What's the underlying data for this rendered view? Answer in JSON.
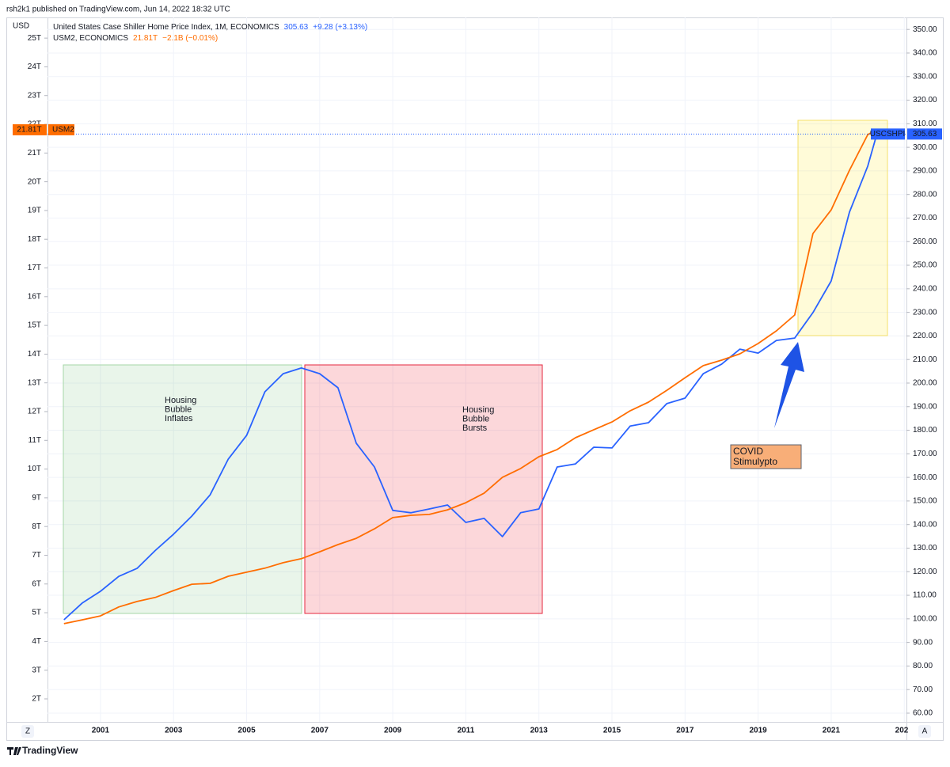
{
  "header": "rsh2k1 published on TradingView.com, Jun 14, 2022 18:32 UTC",
  "footer": "TradingView",
  "controls": [
    "Z",
    "A"
  ],
  "chart_data": {
    "type": "line",
    "y_label": "USD",
    "x": [
      2000,
      2000.5,
      2001,
      2001.5,
      2002,
      2002.5,
      2003,
      2003.5,
      2004,
      2004.5,
      2005,
      2005.5,
      2006,
      2006.5,
      2007,
      2007.5,
      2008,
      2008.5,
      2009,
      2009.5,
      2010,
      2010.5,
      2011,
      2011.5,
      2012,
      2012.5,
      2013,
      2013.5,
      2014,
      2014.5,
      2015,
      2015.5,
      2016,
      2016.5,
      2017,
      2017.5,
      2018,
      2018.5,
      2019,
      2019.5,
      2020,
      2020.5,
      2021,
      2021.5,
      2022,
      2022.25
    ],
    "series": [
      {
        "name": "United States Case Shiller Home Price Index, 1M, ECONOMICS",
        "short_name": "USCSHPI",
        "last": "305.63",
        "change": "+9.28 (+3.13%)",
        "color": "#2962ff",
        "axis": "y2",
        "values": [
          99.6,
          106.7,
          111.7,
          118,
          121.4,
          129,
          135.9,
          143.6,
          152.6,
          167.8,
          177.8,
          196.3,
          204,
          206.4,
          204,
          198,
          174.5,
          164.4,
          146,
          145,
          146.6,
          148.3,
          140.9,
          142.6,
          134.9,
          145,
          146.6,
          164.4,
          165.7,
          172.8,
          172.5,
          181.8,
          183.2,
          191.3,
          193.6,
          204,
          208,
          214.4,
          212.7,
          218.1,
          219.1,
          229.9,
          243.3,
          272.5,
          292,
          305.63
        ]
      },
      {
        "name": "USM2, ECONOMICS",
        "short_name": "USM2",
        "last": "21.81T",
        "change": "−2.1B (−0.01%)",
        "color": "#ff6d00",
        "values": [
          4.62,
          4.75,
          4.89,
          5.2,
          5.39,
          5.53,
          5.77,
          5.99,
          6.02,
          6.27,
          6.41,
          6.55,
          6.74,
          6.88,
          7.12,
          7.37,
          7.59,
          7.92,
          8.31,
          8.39,
          8.42,
          8.58,
          8.83,
          9.16,
          9.71,
          10.02,
          10.43,
          10.68,
          11.09,
          11.37,
          11.64,
          12.03,
          12.33,
          12.74,
          13.18,
          13.6,
          13.79,
          14.01,
          14.37,
          14.81,
          15.36,
          18.2,
          19.02,
          20.4,
          21.64,
          21.81
        ]
      }
    ],
    "xlim": [
      1999.55,
      2023.06
    ],
    "xticks": [
      2001,
      2003,
      2005,
      2007,
      2009,
      2011,
      2013,
      2015,
      2017,
      2019,
      2021,
      {
        "value": 2023,
        "label": "202"
      }
    ],
    "ylim": [
      1.2,
      25.72
    ],
    "yticks": [
      {
        "value": 2,
        "label": "2T"
      },
      {
        "value": 3,
        "label": "3T"
      },
      {
        "value": 4,
        "label": "4T"
      },
      {
        "value": 5,
        "label": "5T"
      },
      {
        "value": 6,
        "label": "6T"
      },
      {
        "value": 7,
        "label": "7T"
      },
      {
        "value": 8,
        "label": "8T"
      },
      {
        "value": 9,
        "label": "9T"
      },
      {
        "value": 10,
        "label": "10T"
      },
      {
        "value": 11,
        "label": "11T"
      },
      {
        "value": 12,
        "label": "12T"
      },
      {
        "value": 13,
        "label": "13T"
      },
      {
        "value": 14,
        "label": "14T"
      },
      {
        "value": 15,
        "label": "15T"
      },
      {
        "value": 16,
        "label": "16T"
      },
      {
        "value": 17,
        "label": "17T"
      },
      {
        "value": 18,
        "label": "18T"
      },
      {
        "value": 19,
        "label": "19T"
      },
      {
        "value": 20,
        "label": "20T"
      },
      {
        "value": 21,
        "label": "21T"
      },
      {
        "value": 22,
        "label": "22T"
      },
      {
        "value": 23,
        "label": "23T"
      },
      {
        "value": 24,
        "label": "24T"
      },
      {
        "value": 25,
        "label": "25T"
      }
    ],
    "y2lim": [
      56.3,
      355.1
    ],
    "y2ticks": [
      {
        "value": 60,
        "label": "60.00"
      },
      {
        "value": 70,
        "label": "70.00"
      },
      {
        "value": 80,
        "label": "80.00"
      },
      {
        "value": 90,
        "label": "90.00"
      },
      {
        "value": 100,
        "label": "100.00"
      },
      {
        "value": 110,
        "label": "110.00"
      },
      {
        "value": 120,
        "label": "120.00"
      },
      {
        "value": 130,
        "label": "130.00"
      },
      {
        "value": 140,
        "label": "140.00"
      },
      {
        "value": 150,
        "label": "150.00"
      },
      {
        "value": 160,
        "label": "160.00"
      },
      {
        "value": 170,
        "label": "170.00"
      },
      {
        "value": 180,
        "label": "180.00"
      },
      {
        "value": 190,
        "label": "190.00"
      },
      {
        "value": 200,
        "label": "200.00"
      },
      {
        "value": 210,
        "label": "210.00"
      },
      {
        "value": 220,
        "label": "220.00"
      },
      {
        "value": 230,
        "label": "230.00"
      },
      {
        "value": 240,
        "label": "240.00"
      },
      {
        "value": 250,
        "label": "250.00"
      },
      {
        "value": 260,
        "label": "260.00"
      },
      {
        "value": 270,
        "label": "270.00"
      },
      {
        "value": 280,
        "label": "280.00"
      },
      {
        "value": 290,
        "label": "290.00"
      },
      {
        "value": 300,
        "label": "300.00"
      },
      {
        "value": 310,
        "label": "310.00"
      },
      {
        "value": 320,
        "label": "320.00"
      },
      {
        "value": 330,
        "label": "330.00"
      },
      {
        "value": 340,
        "label": "340.00"
      },
      {
        "value": 350,
        "label": "350.00"
      }
    ],
    "grid": true,
    "annotations": [
      {
        "text": [
          "Housing",
          "Bubble",
          "Inflates"
        ],
        "color": "#2962ff"
      },
      {
        "text": [
          "Housing",
          "Bubble",
          "Bursts"
        ],
        "color": "#e5273f"
      },
      {
        "text": [
          "COVID",
          "Stimulypto"
        ],
        "color": "#ffffff"
      }
    ]
  }
}
